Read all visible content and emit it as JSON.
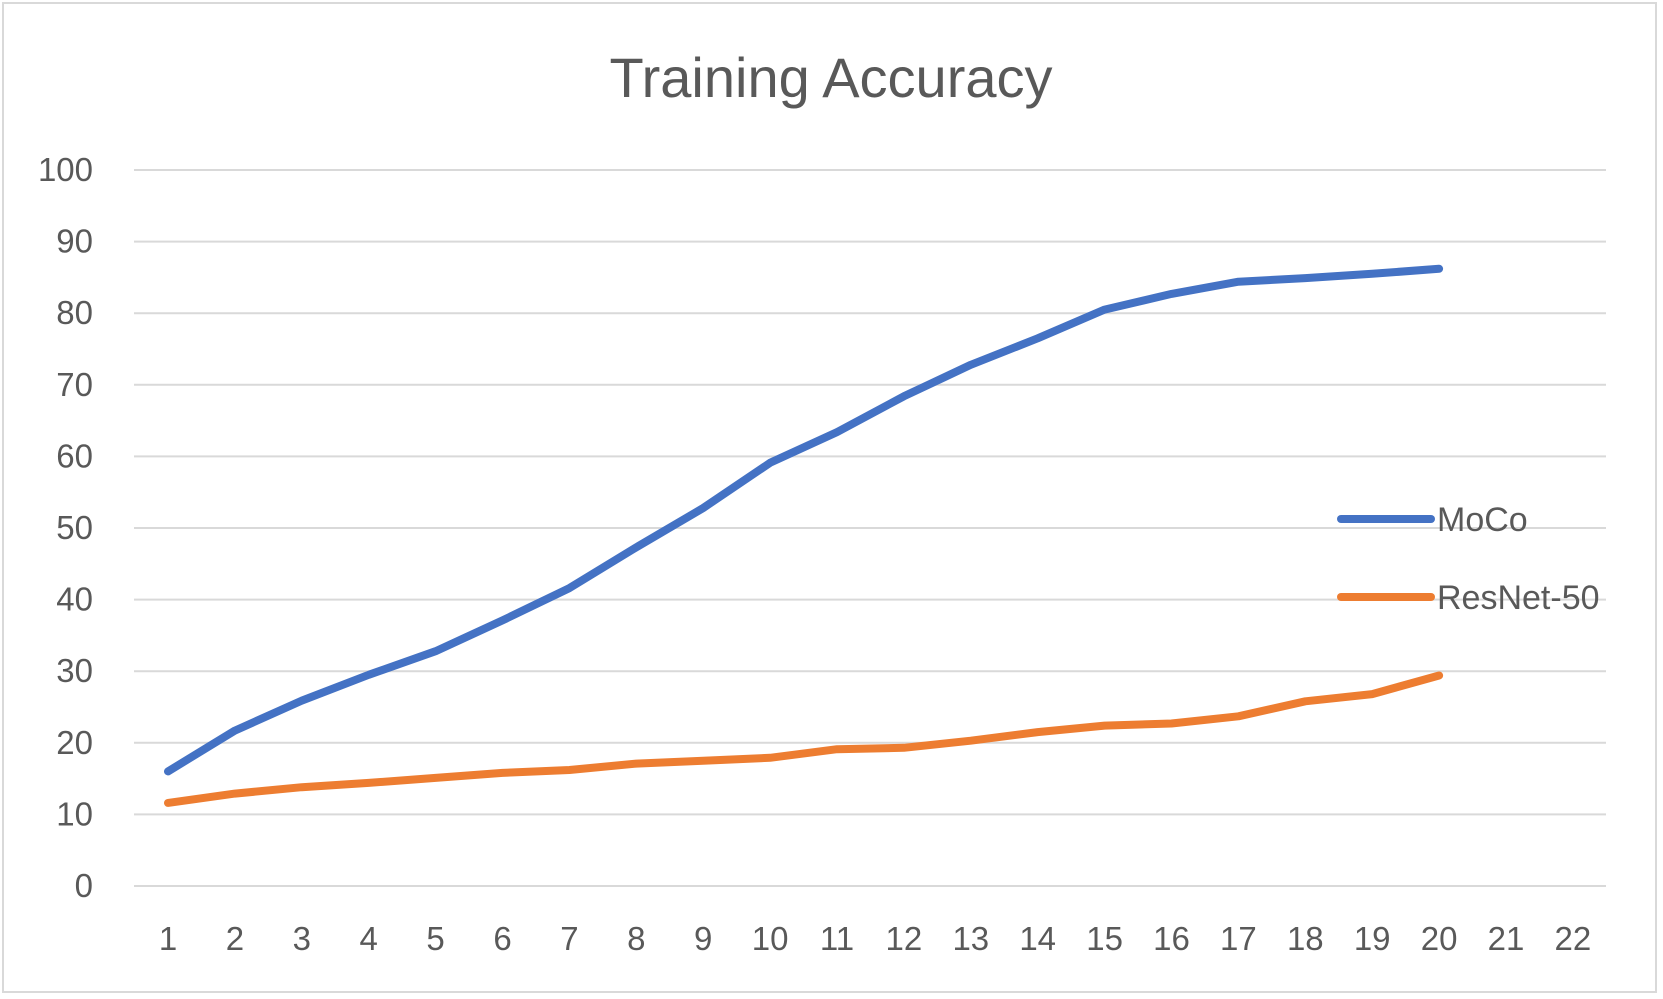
{
  "chart_data": {
    "type": "line",
    "title": "Training Accuracy",
    "xlabel": "",
    "ylabel": "",
    "categories": [
      "1",
      "2",
      "3",
      "4",
      "5",
      "6",
      "7",
      "8",
      "9",
      "10",
      "11",
      "12",
      "13",
      "14",
      "15",
      "16",
      "17",
      "18",
      "19",
      "20",
      "21",
      "22"
    ],
    "ylim": [
      0,
      100
    ],
    "yticks": [
      0,
      10,
      20,
      30,
      40,
      50,
      60,
      70,
      80,
      90,
      100
    ],
    "grid": true,
    "legend_position": "right",
    "series": [
      {
        "name": "MoCo",
        "color": "#4472C4",
        "values": [
          16,
          21.7,
          25.9,
          29.5,
          32.8,
          37.1,
          41.6,
          47.3,
          52.8,
          59.1,
          63.4,
          68.4,
          72.8,
          76.5,
          80.5,
          82.7,
          84.4,
          84.9,
          85.5,
          86.2,
          null,
          null
        ]
      },
      {
        "name": "ResNet-50",
        "color": "#ED7D31",
        "values": [
          11.6,
          12.9,
          13.8,
          14.4,
          15.1,
          15.8,
          16.2,
          17.1,
          17.5,
          17.9,
          19.1,
          19.3,
          20.3,
          21.5,
          22.4,
          22.7,
          23.7,
          25.8,
          26.8,
          29.4,
          null,
          null
        ]
      }
    ]
  }
}
